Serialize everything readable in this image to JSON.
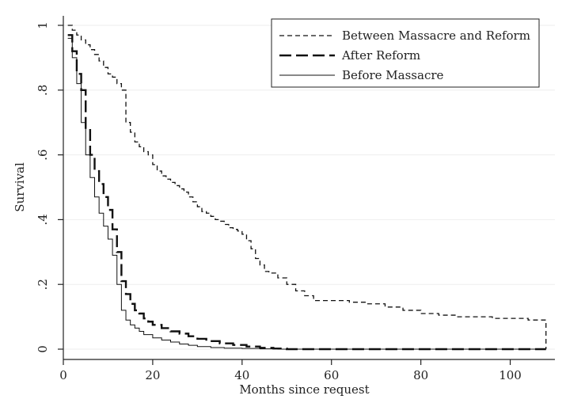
{
  "chart_data": {
    "type": "line",
    "title": "",
    "xlabel": "Months since request",
    "ylabel": "Survival",
    "xlim": [
      0,
      110
    ],
    "ylim": [
      0,
      1
    ],
    "x_ticks": [
      0,
      20,
      40,
      60,
      80,
      100
    ],
    "x_tick_labels": [
      "0",
      "20",
      "40",
      "60",
      "80",
      "100"
    ],
    "y_ticks": [
      0,
      0.2,
      0.4,
      0.6,
      0.8,
      1
    ],
    "y_tick_labels": [
      "0",
      ".2",
      ".4",
      ".6",
      ".8",
      "1"
    ],
    "grid": true,
    "legend_position": "top-right",
    "step": true,
    "series": [
      {
        "name": "Between Massacre and Reform",
        "style": "short-dash",
        "x": [
          1,
          2,
          3,
          4,
          5,
          6,
          7,
          8,
          9,
          10,
          11,
          12,
          13,
          14,
          15,
          16,
          17,
          18,
          19,
          20,
          21,
          22,
          23,
          24,
          25,
          26,
          27,
          28,
          29,
          30,
          31,
          32,
          33,
          34,
          35,
          36,
          37,
          38,
          39,
          40,
          41,
          42,
          43,
          44,
          45,
          46,
          48,
          50,
          52,
          54,
          56,
          60,
          64,
          68,
          72,
          76,
          80,
          84,
          88,
          92,
          96,
          100,
          104,
          108
        ],
        "y": [
          1.0,
          0.985,
          0.97,
          0.955,
          0.94,
          0.925,
          0.91,
          0.89,
          0.87,
          0.85,
          0.84,
          0.82,
          0.8,
          0.7,
          0.67,
          0.64,
          0.625,
          0.61,
          0.6,
          0.57,
          0.55,
          0.535,
          0.525,
          0.515,
          0.505,
          0.495,
          0.485,
          0.47,
          0.455,
          0.44,
          0.425,
          0.42,
          0.41,
          0.4,
          0.395,
          0.385,
          0.375,
          0.37,
          0.365,
          0.355,
          0.335,
          0.31,
          0.28,
          0.26,
          0.24,
          0.235,
          0.22,
          0.2,
          0.18,
          0.165,
          0.15,
          0.15,
          0.145,
          0.14,
          0.13,
          0.12,
          0.11,
          0.105,
          0.1,
          0.1,
          0.095,
          0.095,
          0.09,
          0.0
        ]
      },
      {
        "name": "After Reform",
        "style": "long-dash",
        "x": [
          1,
          2,
          3,
          4,
          5,
          6,
          7,
          8,
          9,
          10,
          11,
          12,
          13,
          14,
          15,
          16,
          17,
          18,
          19,
          20,
          22,
          24,
          26,
          28,
          30,
          32,
          35,
          38,
          41,
          44,
          47,
          50,
          108
        ],
        "y": [
          0.97,
          0.92,
          0.85,
          0.8,
          0.68,
          0.6,
          0.55,
          0.51,
          0.47,
          0.43,
          0.37,
          0.3,
          0.21,
          0.17,
          0.14,
          0.12,
          0.11,
          0.095,
          0.085,
          0.075,
          0.065,
          0.055,
          0.048,
          0.04,
          0.032,
          0.025,
          0.018,
          0.013,
          0.008,
          0.004,
          0.002,
          0.0,
          0.0
        ]
      },
      {
        "name": "Before Massacre",
        "style": "solid-thin",
        "x": [
          1,
          2,
          3,
          4,
          5,
          6,
          7,
          8,
          9,
          10,
          11,
          12,
          13,
          14,
          15,
          16,
          17,
          18,
          20,
          22,
          24,
          26,
          28,
          30,
          33,
          36,
          40,
          44,
          48,
          108
        ],
        "y": [
          0.96,
          0.9,
          0.82,
          0.7,
          0.6,
          0.53,
          0.47,
          0.42,
          0.38,
          0.34,
          0.29,
          0.2,
          0.12,
          0.09,
          0.075,
          0.065,
          0.055,
          0.045,
          0.035,
          0.028,
          0.022,
          0.016,
          0.012,
          0.008,
          0.005,
          0.003,
          0.002,
          0.001,
          0.0,
          0.0
        ]
      }
    ]
  }
}
